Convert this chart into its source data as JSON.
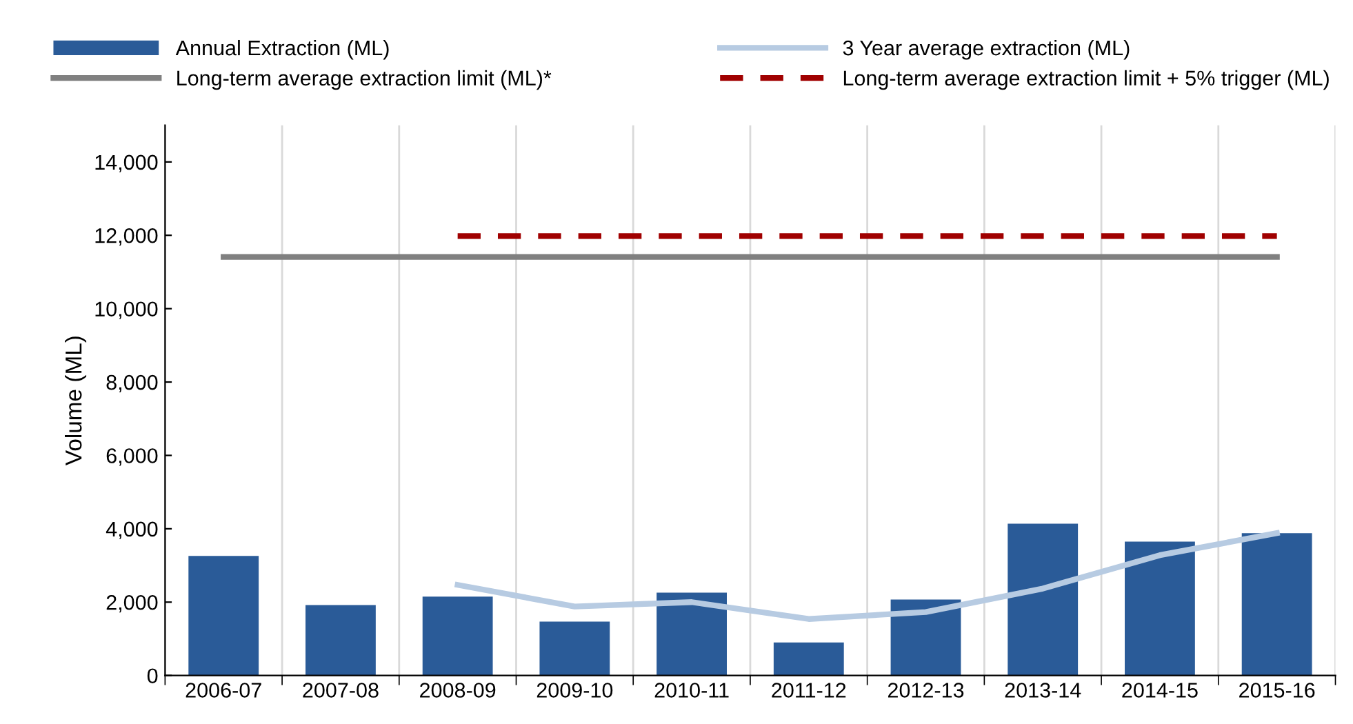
{
  "chart_data": {
    "type": "bar",
    "ylabel": "Volume (ML)",
    "categories": [
      "2006-07",
      "2007-08",
      "2008-09",
      "2009-10",
      "2010-11",
      "2011-12",
      "2012-13",
      "2013-14",
      "2014-15",
      "2015-16"
    ],
    "series": [
      {
        "name": "Annual Extraction (ML)",
        "color": "#2a5b98",
        "values": [
          3260,
          1920,
          2150,
          1470,
          2260,
          900,
          2070,
          4140,
          3650,
          3880
        ]
      },
      {
        "name": "3 Year average extraction (ML)",
        "type": "line",
        "color": "#b7cbe2",
        "line_style": "solid",
        "values": [
          null,
          null,
          2470,
          1880,
          2000,
          1540,
          1730,
          2370,
          3280,
          3880
        ]
      },
      {
        "name": "Long-term average extraction limit (ML)*",
        "type": "line",
        "color": "#808080",
        "line_style": "solid",
        "values": [
          11410,
          11410,
          11410,
          11410,
          11410,
          11410,
          11410,
          11410,
          11410,
          11410
        ]
      },
      {
        "name": "Long-term average extraction limit + 5% trigger (ML)",
        "type": "line",
        "color": "#a00000",
        "line_style": "dashed",
        "values": [
          null,
          null,
          11980,
          11980,
          11980,
          11980,
          11980,
          11980,
          11980,
          11980
        ]
      }
    ],
    "ylim": [
      0,
      15000
    ],
    "yticks": [
      {
        "value": 0,
        "label": "0"
      },
      {
        "value": 2000,
        "label": "2,000"
      },
      {
        "value": 4000,
        "label": "4,000"
      },
      {
        "value": 6000,
        "label": "6,000"
      },
      {
        "value": 8000,
        "label": "8,000"
      },
      {
        "value": 10000,
        "label": "10,000"
      },
      {
        "value": 12000,
        "label": "12,000"
      },
      {
        "value": 14000,
        "label": "14,000"
      }
    ],
    "grid": "x",
    "legend": "top"
  }
}
